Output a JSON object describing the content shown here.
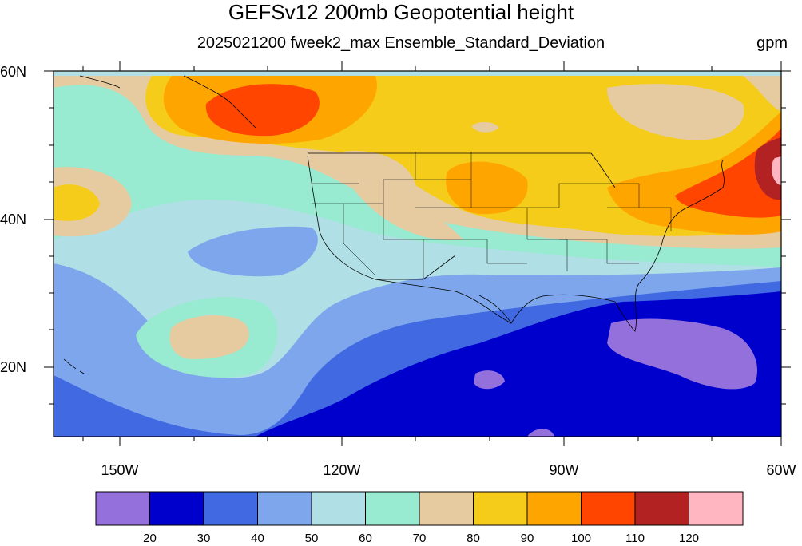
{
  "title": "GEFSv12 200mb Geopotential height",
  "subtitle": "2025021200 fweek2_max Ensemble_Standard_Deviation",
  "units": "gpm",
  "lat_labels": [
    "60N",
    "40N",
    "20N"
  ],
  "lon_labels": [
    "150W",
    "120W",
    "90W",
    "60W"
  ],
  "colorbar": {
    "colors": [
      "#9370db",
      "#0000cd",
      "#4169e1",
      "#7ea6ec",
      "#b0e0e6",
      "#98ead0",
      "#e6cba1",
      "#f5cc1a",
      "#ffa500",
      "#ff4500",
      "#b22222",
      "#ffb6c1"
    ],
    "labels": [
      "20",
      "30",
      "40",
      "50",
      "60",
      "70",
      "80",
      "90",
      "100",
      "110",
      "120"
    ]
  },
  "map": {
    "lon_range": [
      -162,
      -60
    ],
    "lat_range": [
      10,
      60
    ],
    "field": "200mb Geopotential height ensemble standard deviation"
  }
}
